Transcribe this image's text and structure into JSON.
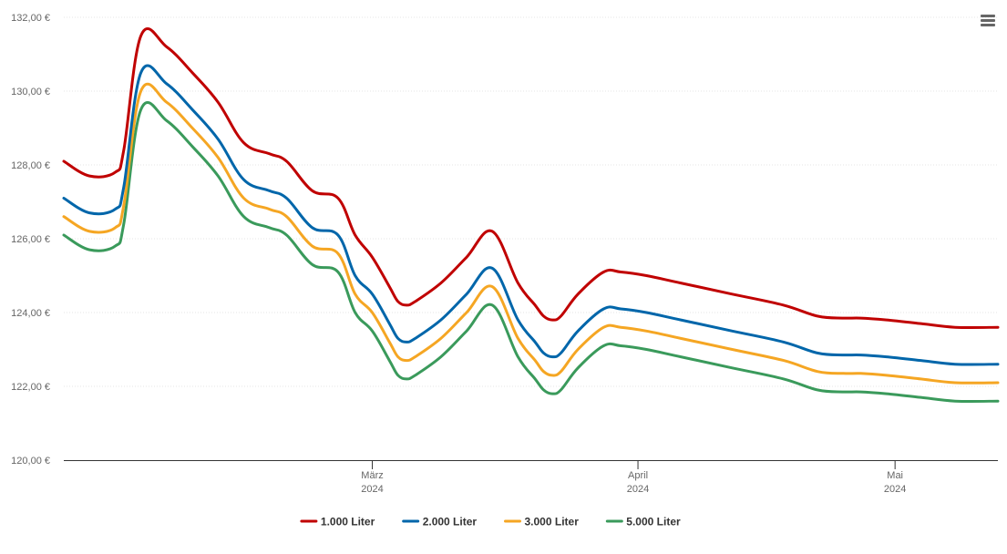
{
  "chart_data": {
    "type": "line",
    "currency_suffix": " €",
    "ylim": [
      120,
      132
    ],
    "yticks": [
      "120,00 €",
      "122,00 €",
      "124,00 €",
      "126,00 €",
      "128,00 €",
      "130,00 €",
      "132,00 €"
    ],
    "ytick_values": [
      120,
      122,
      124,
      126,
      128,
      130,
      132
    ],
    "xlim": [
      "2024-01-25",
      "2024-05-13"
    ],
    "xticks": [
      {
        "date": "2024-03-01",
        "month": "März",
        "year": "2024"
      },
      {
        "date": "2024-04-01",
        "month": "April",
        "year": "2024"
      },
      {
        "date": "2024-05-01",
        "month": "Mai",
        "year": "2024"
      }
    ],
    "grid": true,
    "legend_position": "bottom-center",
    "x": [
      "2024-01-25",
      "2024-01-28",
      "2024-01-31",
      "2024-02-01",
      "2024-02-03",
      "2024-02-06",
      "2024-02-09",
      "2024-02-12",
      "2024-02-15",
      "2024-02-18",
      "2024-02-20",
      "2024-02-23",
      "2024-02-26",
      "2024-02-28",
      "2024-03-01",
      "2024-03-03",
      "2024-03-04",
      "2024-03-05",
      "2024-03-06",
      "2024-03-09",
      "2024-03-12",
      "2024-03-15",
      "2024-03-18",
      "2024-03-20",
      "2024-03-21",
      "2024-03-22",
      "2024-03-23",
      "2024-03-25",
      "2024-03-28",
      "2024-03-30",
      "2024-04-02",
      "2024-04-06",
      "2024-04-12",
      "2024-04-18",
      "2024-04-22",
      "2024-04-25",
      "2024-04-27",
      "2024-04-30",
      "2024-05-04",
      "2024-05-08",
      "2024-05-13"
    ],
    "series": [
      {
        "name": "1.000 Liter",
        "color": "#c00000",
        "values": [
          128.1,
          127.7,
          127.8,
          128.4,
          131.5,
          131.2,
          130.5,
          129.7,
          128.6,
          128.3,
          128.1,
          127.3,
          127.1,
          126.1,
          125.5,
          124.7,
          124.3,
          124.2,
          124.3,
          124.8,
          125.5,
          126.2,
          124.8,
          124.2,
          123.9,
          123.8,
          123.9,
          124.5,
          125.1,
          125.1,
          125.0,
          124.8,
          124.5,
          124.2,
          123.9,
          123.85,
          123.85,
          123.8,
          123.7,
          123.6,
          123.6
        ]
      },
      {
        "name": "2.000 Liter",
        "color": "#0066aa",
        "values": [
          127.1,
          126.7,
          126.8,
          127.4,
          130.5,
          130.2,
          129.5,
          128.7,
          127.6,
          127.3,
          127.1,
          126.3,
          126.1,
          125.0,
          124.5,
          123.7,
          123.3,
          123.2,
          123.3,
          123.8,
          124.5,
          125.2,
          123.8,
          123.2,
          122.9,
          122.8,
          122.9,
          123.5,
          124.1,
          124.1,
          124.0,
          123.8,
          123.5,
          123.2,
          122.9,
          122.85,
          122.85,
          122.8,
          122.7,
          122.6,
          122.6
        ]
      },
      {
        "name": "3.000 Liter",
        "color": "#f5a623",
        "values": [
          126.6,
          126.2,
          126.3,
          126.9,
          130.0,
          129.7,
          129.0,
          128.2,
          127.1,
          126.8,
          126.6,
          125.8,
          125.6,
          124.5,
          124.0,
          123.2,
          122.8,
          122.7,
          122.8,
          123.3,
          124.0,
          124.7,
          123.3,
          122.7,
          122.4,
          122.3,
          122.4,
          123.0,
          123.6,
          123.6,
          123.5,
          123.3,
          123.0,
          122.7,
          122.4,
          122.35,
          122.35,
          122.3,
          122.2,
          122.1,
          122.1
        ]
      },
      {
        "name": "5.000 Liter",
        "color": "#3a9a5b",
        "values": [
          126.1,
          125.7,
          125.8,
          126.4,
          129.5,
          129.2,
          128.5,
          127.7,
          126.6,
          126.3,
          126.1,
          125.3,
          125.1,
          124.0,
          123.5,
          122.7,
          122.3,
          122.2,
          122.3,
          122.8,
          123.5,
          124.2,
          122.8,
          122.2,
          121.9,
          121.8,
          121.9,
          122.5,
          123.1,
          123.1,
          123.0,
          122.8,
          122.5,
          122.2,
          121.9,
          121.85,
          121.85,
          121.8,
          121.7,
          121.6,
          121.6
        ]
      }
    ]
  },
  "icons": {
    "menu": "hamburger-menu-icon"
  }
}
